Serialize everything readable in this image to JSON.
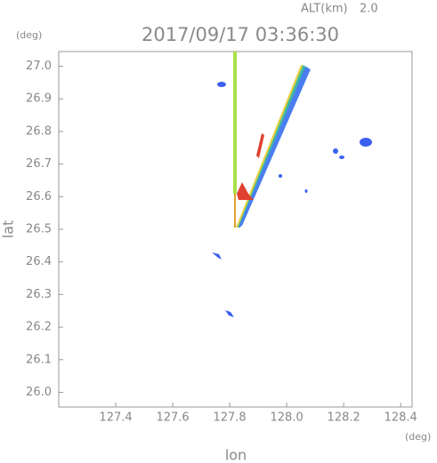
{
  "header": {
    "altitude_label": "ALT(km)",
    "altitude": "2.0",
    "y_unit": "(deg)",
    "x_unit": "(deg)"
  },
  "chart_data": {
    "type": "map",
    "title": "2017/09/17 03:36:30",
    "x_label": "lon",
    "y_label": "lat",
    "xlim": [
      127.2,
      128.44
    ],
    "ylim": [
      25.955,
      27.045
    ],
    "xticks": [
      127.4,
      127.6,
      127.8,
      {
        "value": 128,
        "label": "128.0"
      },
      128.2,
      128.4
    ],
    "yticks": [
      {
        "value": 26,
        "label": "26.0"
      },
      26.1,
      26.2,
      26.3,
      26.4,
      26.5,
      26.6,
      26.7,
      26.8,
      26.9,
      {
        "value": 27,
        "label": "27.0"
      }
    ]
  }
}
